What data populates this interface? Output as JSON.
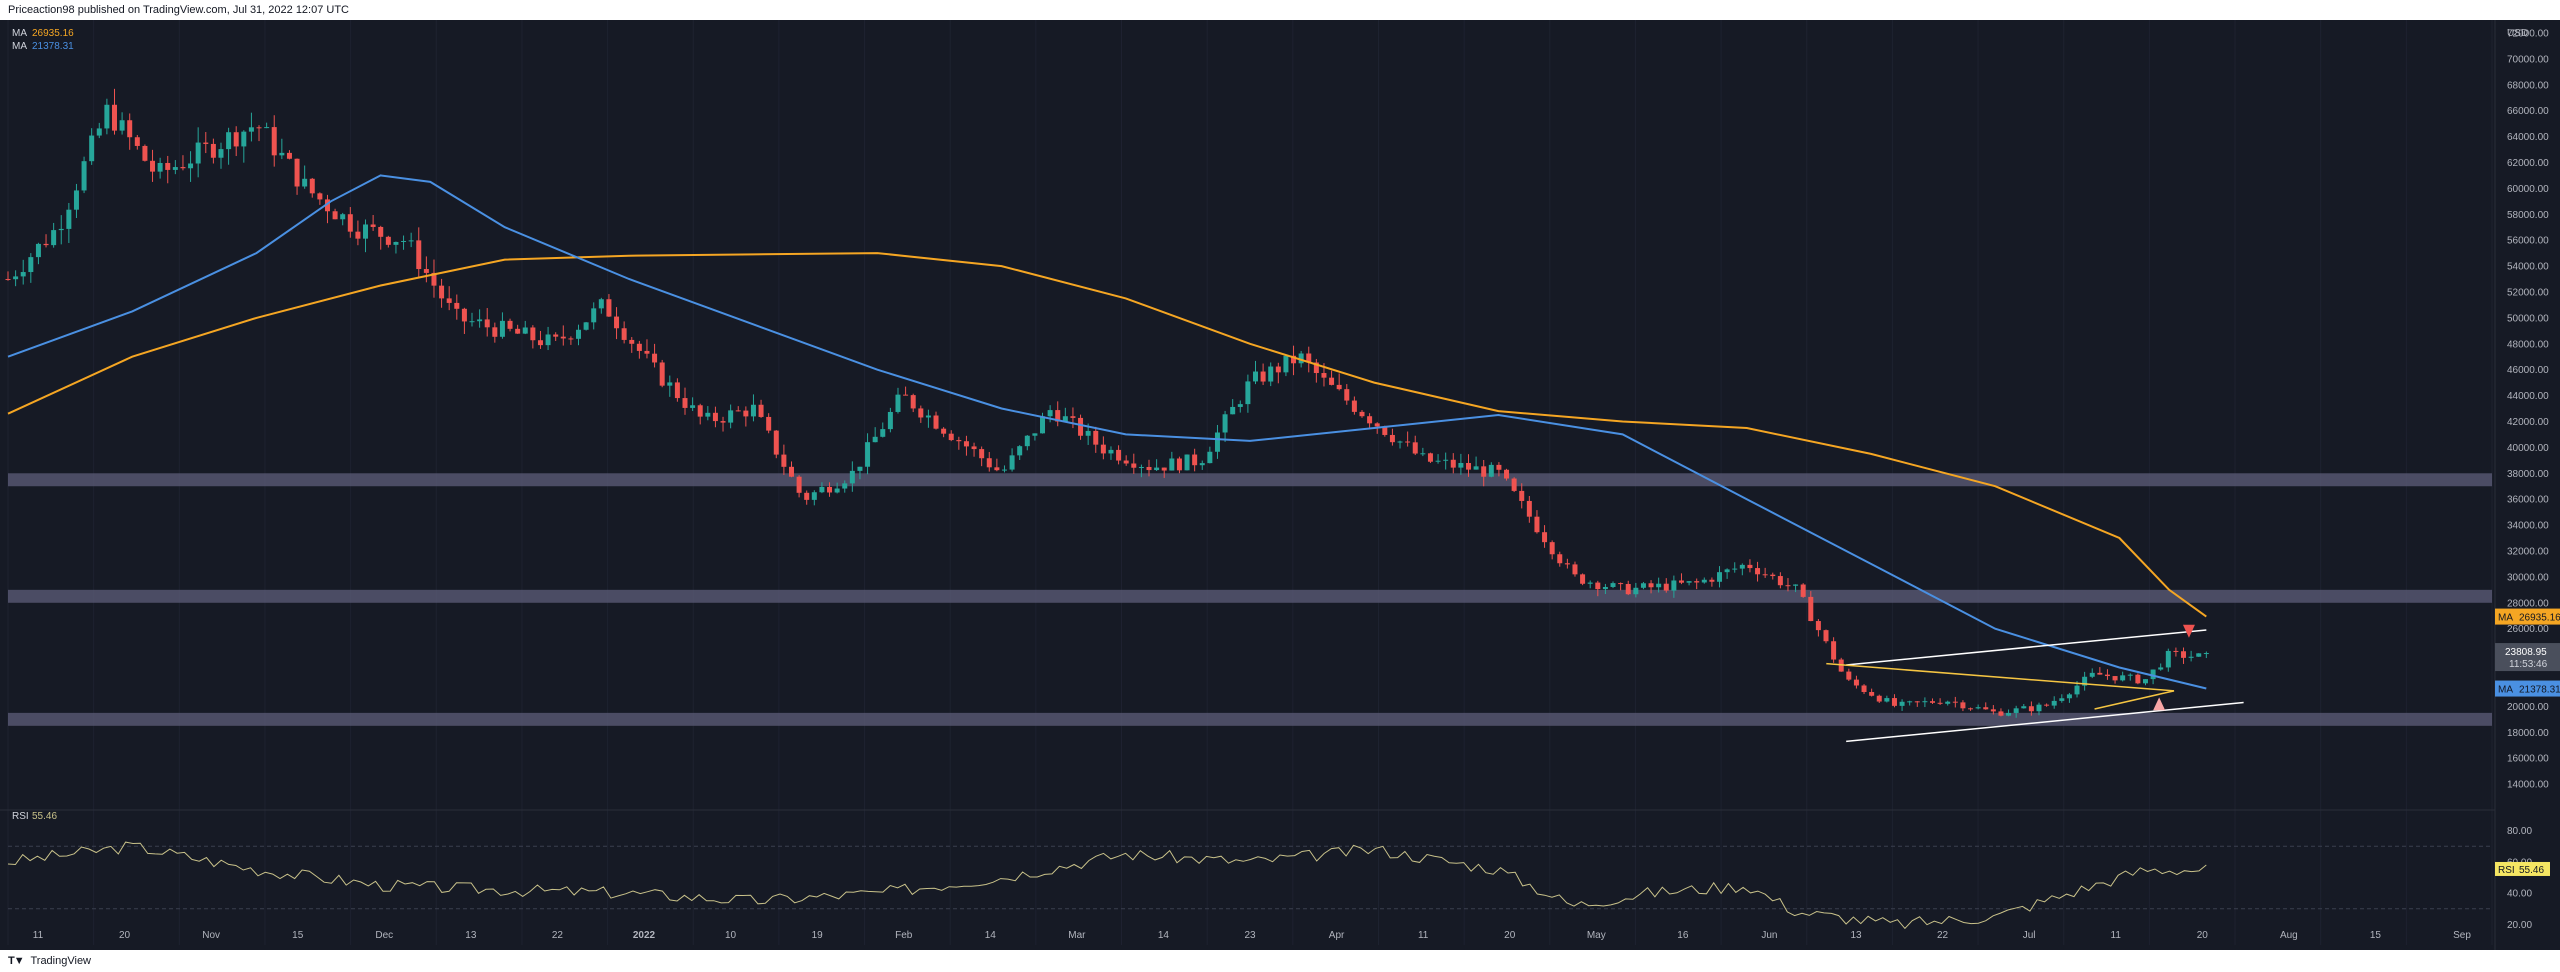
{
  "header": {
    "publisher_text": "Priceaction98 published on TradingView.com, Jul 31, 2022 12:07 UTC"
  },
  "footer": {
    "logo_glyph": "T▼",
    "brand": "TradingView"
  },
  "legend": {
    "ma1": {
      "label": "MA",
      "value": "26935.16",
      "color": "#f5a623"
    },
    "ma2": {
      "label": "MA",
      "value": "21378.31",
      "color": "#4a90e2"
    }
  },
  "rsi_legend": {
    "label": "RSI",
    "value": "55.46"
  },
  "price_axis": {
    "currency": "USD",
    "ticks": [
      "72000.00",
      "70000.00",
      "68000.00",
      "66000.00",
      "64000.00",
      "62000.00",
      "60000.00",
      "58000.00",
      "56000.00",
      "54000.00",
      "52000.00",
      "50000.00",
      "48000.00",
      "46000.00",
      "44000.00",
      "42000.00",
      "40000.00",
      "38000.00",
      "36000.00",
      "34000.00",
      "32000.00",
      "30000.00",
      "28000.00",
      "26000.00",
      "20000.00",
      "18000.00",
      "16000.00",
      "14000.00"
    ],
    "labels": {
      "ma1": {
        "tag": "MA",
        "value": "26935.16"
      },
      "price": {
        "value": "23808.95",
        "sub": "11:53:46"
      },
      "ma2": {
        "tag": "MA",
        "value": "21378.31"
      }
    }
  },
  "rsi_axis": {
    "ticks": [
      "80.00",
      "60.00",
      "40.00",
      "20.00"
    ],
    "label": {
      "tag": "RSI",
      "value": "55.46"
    }
  },
  "time_axis": {
    "ticks": [
      "11",
      "20",
      "Nov",
      "15",
      "Dec",
      "13",
      "22",
      "2022",
      "10",
      "19",
      "Feb",
      "14",
      "Mar",
      "14",
      "23",
      "Apr",
      "11",
      "20",
      "May",
      "16",
      "Jun",
      "13",
      "22",
      "Jul",
      "11",
      "20",
      "Aug",
      "15",
      "Sep"
    ]
  },
  "colors": {
    "background": "#161a25",
    "up": "#26a69a",
    "down": "#ef5350",
    "ma_long": "#f5a623",
    "ma_short": "#4a90e2",
    "zone": "#5d5d7a",
    "rsi_line": "#c9c28a",
    "trendline": "#ffffff",
    "wedge": "#f5c542"
  },
  "chart_data": {
    "type": "candlestick",
    "title": "",
    "y_axis_unit": "USD",
    "ylim": [
      12000,
      73000
    ],
    "x_period": [
      "2021-10-11",
      "2022-09-20"
    ],
    "series": [
      {
        "name": "MA",
        "value_label": "26935.16",
        "points": [
          [
            0,
            42600
          ],
          [
            0.05,
            47000
          ],
          [
            0.1,
            50000
          ],
          [
            0.15,
            52500
          ],
          [
            0.2,
            54500
          ],
          [
            0.25,
            54800
          ],
          [
            0.3,
            54900
          ],
          [
            0.35,
            55000
          ],
          [
            0.4,
            54000
          ],
          [
            0.45,
            51500
          ],
          [
            0.5,
            48000
          ],
          [
            0.55,
            45000
          ],
          [
            0.6,
            42800
          ],
          [
            0.65,
            42000
          ],
          [
            0.7,
            41500
          ],
          [
            0.75,
            39500
          ],
          [
            0.8,
            37000
          ],
          [
            0.85,
            33000
          ],
          [
            0.87,
            29000
          ],
          [
            0.885,
            26935
          ]
        ]
      },
      {
        "name": "MA",
        "value_label": "21378.31",
        "points": [
          [
            0,
            47000
          ],
          [
            0.05,
            50500
          ],
          [
            0.1,
            55000
          ],
          [
            0.13,
            59000
          ],
          [
            0.15,
            61000
          ],
          [
            0.17,
            60500
          ],
          [
            0.2,
            57000
          ],
          [
            0.25,
            53000
          ],
          [
            0.3,
            49500
          ],
          [
            0.35,
            46000
          ],
          [
            0.4,
            43000
          ],
          [
            0.45,
            41000
          ],
          [
            0.5,
            40500
          ],
          [
            0.55,
            41500
          ],
          [
            0.6,
            42500
          ],
          [
            0.65,
            41000
          ],
          [
            0.7,
            36000
          ],
          [
            0.75,
            31000
          ],
          [
            0.8,
            26000
          ],
          [
            0.85,
            23000
          ],
          [
            0.885,
            21378
          ]
        ]
      }
    ],
    "candles_close_path": [
      [
        0,
        53000
      ],
      [
        0.02,
        57000
      ],
      [
        0.04,
        66000
      ],
      [
        0.06,
        61000
      ],
      [
        0.08,
        63000
      ],
      [
        0.1,
        65000
      ],
      [
        0.12,
        60000
      ],
      [
        0.14,
        57000
      ],
      [
        0.16,
        56000
      ],
      [
        0.18,
        50000
      ],
      [
        0.2,
        49000
      ],
      [
        0.22,
        48000
      ],
      [
        0.24,
        51000
      ],
      [
        0.26,
        46000
      ],
      [
        0.28,
        42000
      ],
      [
        0.3,
        43000
      ],
      [
        0.32,
        36000
      ],
      [
        0.34,
        38000
      ],
      [
        0.36,
        44000
      ],
      [
        0.38,
        41000
      ],
      [
        0.4,
        38000
      ],
      [
        0.42,
        43000
      ],
      [
        0.44,
        40000
      ],
      [
        0.46,
        38500
      ],
      [
        0.48,
        39000
      ],
      [
        0.5,
        45000
      ],
      [
        0.52,
        47000
      ],
      [
        0.53,
        45000
      ],
      [
        0.55,
        42000
      ],
      [
        0.57,
        39000
      ],
      [
        0.6,
        38000
      ],
      [
        0.63,
        30000
      ],
      [
        0.65,
        29000
      ],
      [
        0.68,
        29500
      ],
      [
        0.7,
        31000
      ],
      [
        0.72,
        29000
      ],
      [
        0.74,
        22000
      ],
      [
        0.76,
        20000
      ],
      [
        0.78,
        20500
      ],
      [
        0.8,
        19500
      ],
      [
        0.82,
        20000
      ],
      [
        0.84,
        22500
      ],
      [
        0.86,
        22000
      ],
      [
        0.87,
        24000
      ],
      [
        0.885,
        23809
      ]
    ],
    "zones_price": [
      [
        37000,
        38000
      ],
      [
        28000,
        29000
      ],
      [
        18500,
        19500
      ]
    ],
    "rsi": {
      "name": "RSI",
      "ylim": [
        10,
        90
      ],
      "levels": [
        70,
        30
      ],
      "last": 55.46,
      "points": [
        [
          0,
          60
        ],
        [
          0.05,
          70
        ],
        [
          0.1,
          55
        ],
        [
          0.15,
          45
        ],
        [
          0.2,
          42
        ],
        [
          0.25,
          40
        ],
        [
          0.3,
          35
        ],
        [
          0.35,
          40
        ],
        [
          0.4,
          50
        ],
        [
          0.45,
          65
        ],
        [
          0.5,
          60
        ],
        [
          0.55,
          68
        ],
        [
          0.6,
          55
        ],
        [
          0.63,
          32
        ],
        [
          0.66,
          40
        ],
        [
          0.7,
          45
        ],
        [
          0.72,
          28
        ],
        [
          0.76,
          20
        ],
        [
          0.8,
          25
        ],
        [
          0.83,
          40
        ],
        [
          0.86,
          55
        ],
        [
          0.885,
          55
        ]
      ]
    }
  }
}
